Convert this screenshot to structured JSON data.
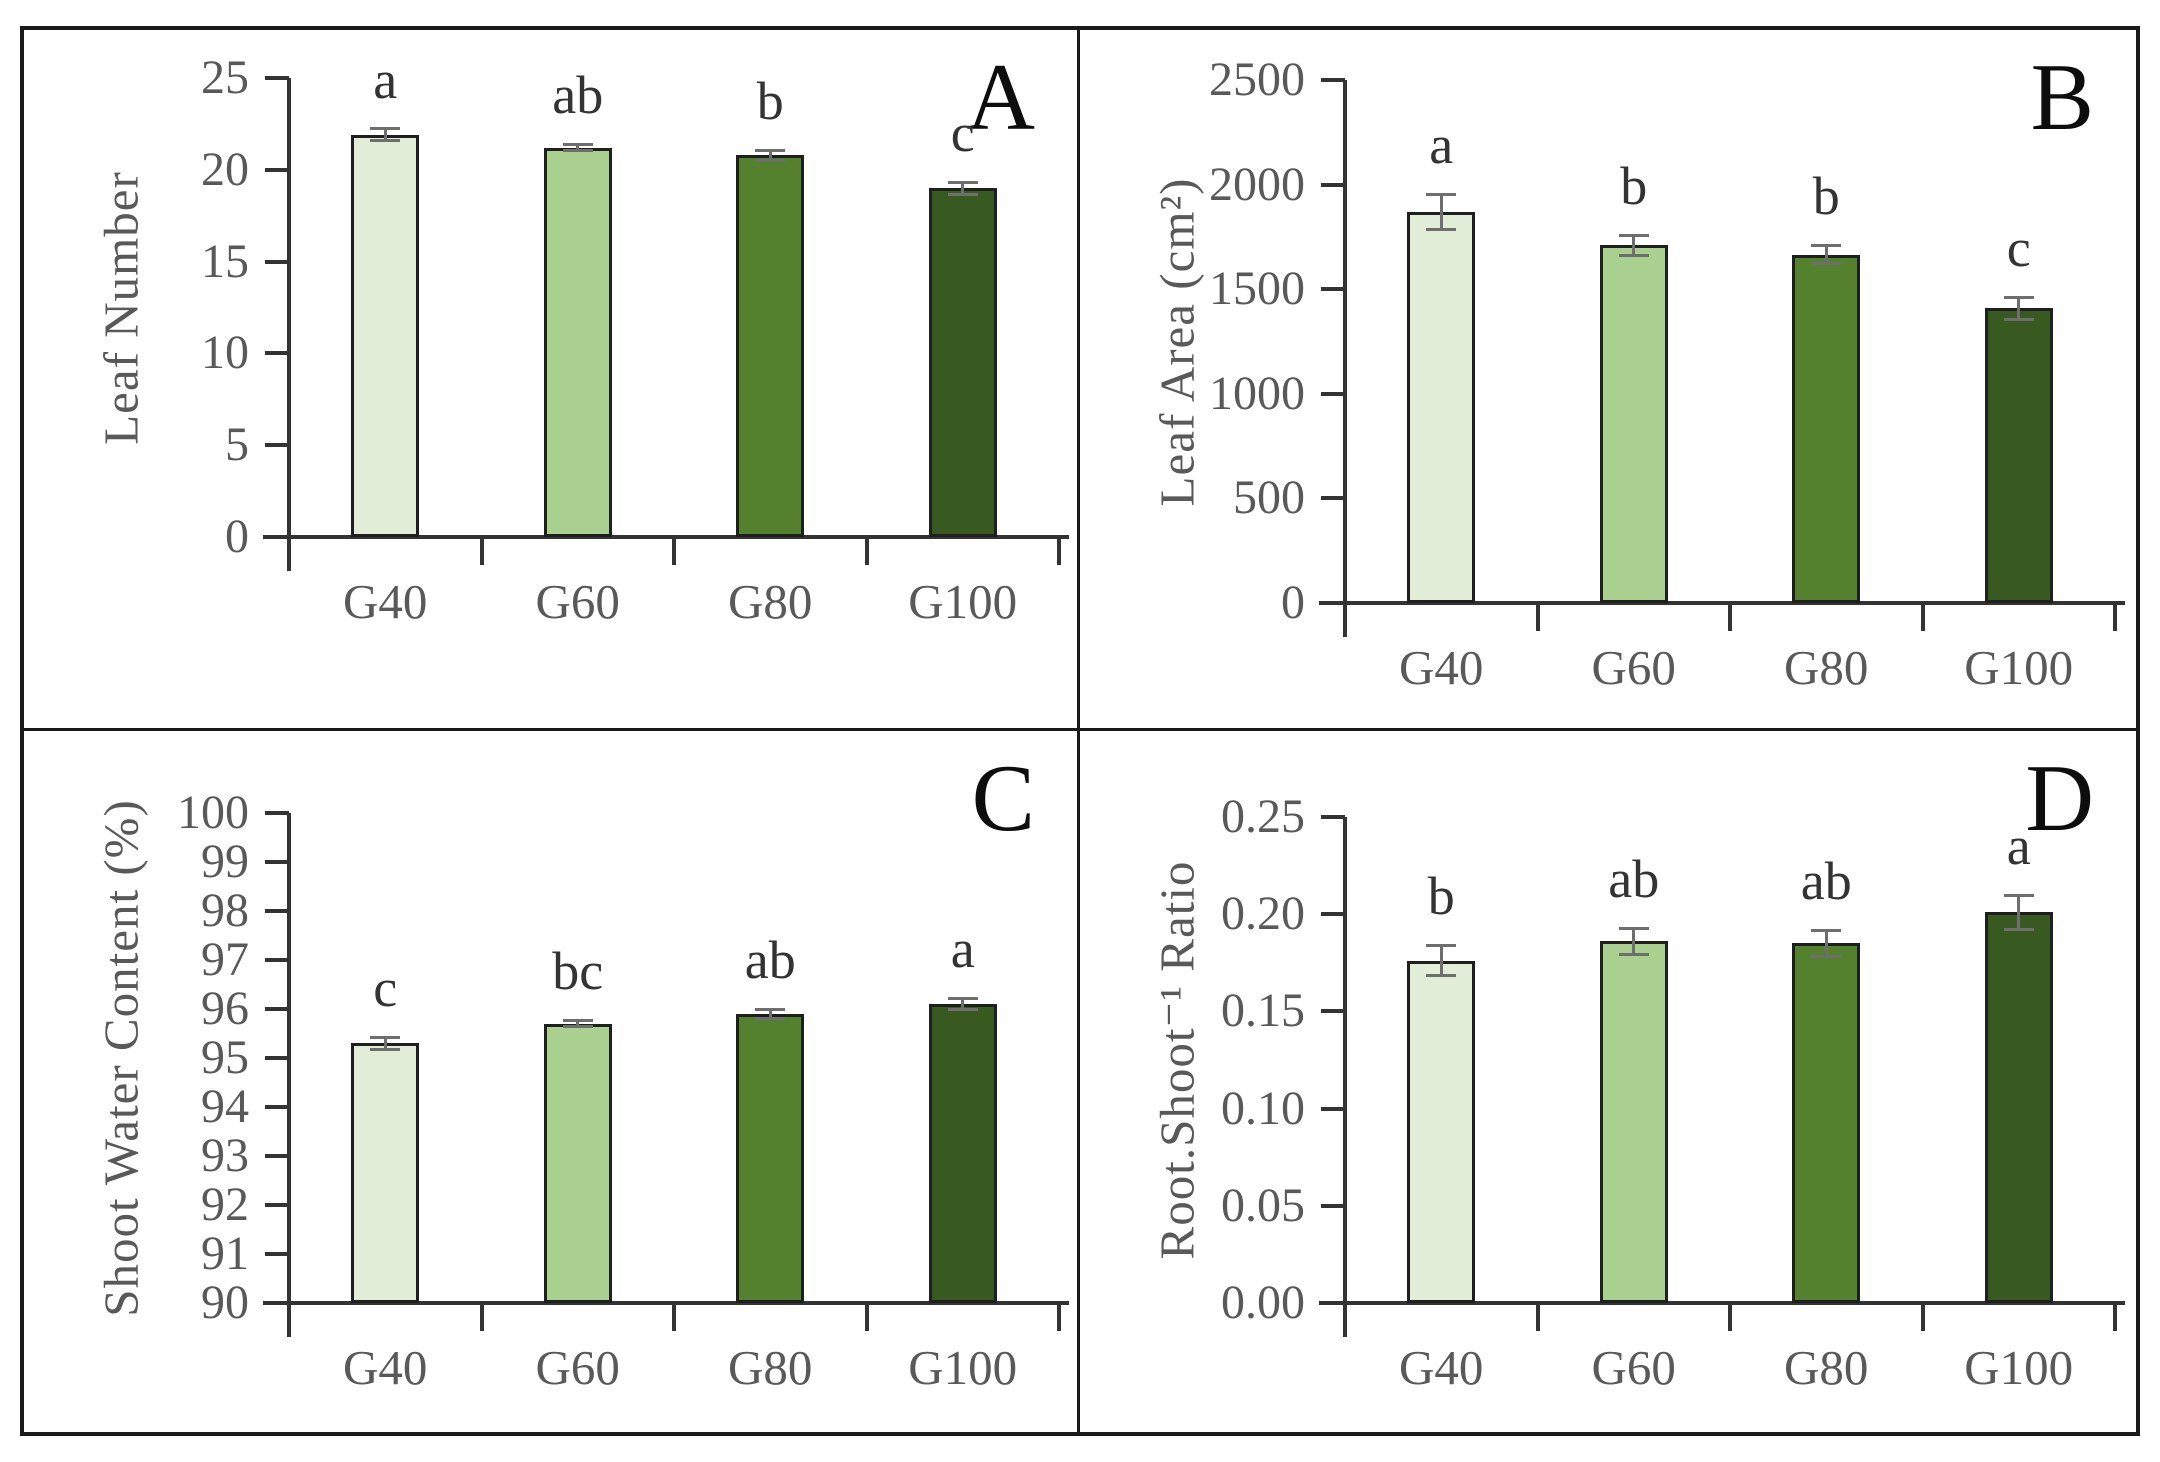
{
  "figure": {
    "bar_colors": [
      "#e1edd7",
      "#a9d08e",
      "#53812e",
      "#38591f"
    ],
    "bar_border_color": "#1f1f1f",
    "error_bar_color": "#6e6e6e",
    "axis_color": "#333333",
    "text_color": "#595959",
    "panel_letter_color": "#0d0d0d"
  },
  "chart_data": [
    {
      "type": "bar",
      "panel_letter": "A",
      "ylabel": "Leaf Number",
      "xlabel": "",
      "categories": [
        "G40",
        "G60",
        "G80",
        "G100"
      ],
      "values": [
        21.9,
        21.2,
        20.8,
        19.0
      ],
      "errors": [
        0.35,
        0.2,
        0.3,
        0.35
      ],
      "sig_letters": [
        "a",
        "ab",
        "b",
        "c"
      ],
      "ylim": [
        0,
        25
      ],
      "ystep": 5,
      "ytick_labels": [
        "25",
        "20",
        "15",
        "10",
        "5",
        "0"
      ],
      "grid": false,
      "legend": "none"
    },
    {
      "type": "bar",
      "panel_letter": "B",
      "ylabel": "Leaf Area (cm²)",
      "xlabel": "",
      "categories": [
        "G40",
        "G60",
        "G80",
        "G100"
      ],
      "values": [
        1870,
        1710,
        1665,
        1410
      ],
      "errors": [
        85,
        50,
        45,
        55
      ],
      "sig_letters": [
        "a",
        "b",
        "b",
        "c"
      ],
      "ylim": [
        0,
        2500
      ],
      "ystep": 500,
      "ytick_labels": [
        "2500",
        "2000",
        "1500",
        "1000",
        "500",
        "0"
      ],
      "grid": false,
      "legend": "none"
    },
    {
      "type": "bar",
      "panel_letter": "C",
      "ylabel": "Shoot Water Content (%)",
      "xlabel": "",
      "categories": [
        "G40",
        "G60",
        "G80",
        "G100"
      ],
      "values": [
        95.3,
        95.7,
        95.9,
        96.1
      ],
      "errors": [
        0.13,
        0.07,
        0.1,
        0.12
      ],
      "sig_letters": [
        "c",
        "bc",
        "ab",
        "a"
      ],
      "ylim": [
        90,
        100
      ],
      "ystep": 1,
      "ytick_labels": [
        "100",
        "99",
        "98",
        "97",
        "96",
        "95",
        "94",
        "93",
        "92",
        "91",
        "90"
      ],
      "grid": false,
      "legend": "none"
    },
    {
      "type": "bar",
      "panel_letter": "D",
      "ylabel": "Root.Shoot⁻¹ Ratio",
      "xlabel": "",
      "categories": [
        "G40",
        "G60",
        "G80",
        "G100"
      ],
      "values": [
        0.176,
        0.186,
        0.185,
        0.201
      ],
      "errors": [
        0.008,
        0.007,
        0.007,
        0.009
      ],
      "sig_letters": [
        "b",
        "ab",
        "ab",
        "a"
      ],
      "ylim": [
        0,
        0.25
      ],
      "ystep": 0.05,
      "ytick_labels": [
        "0.25",
        "0.20",
        "0.15",
        "0.10",
        "0.05",
        "0.00"
      ],
      "grid": false,
      "legend": "none"
    }
  ]
}
